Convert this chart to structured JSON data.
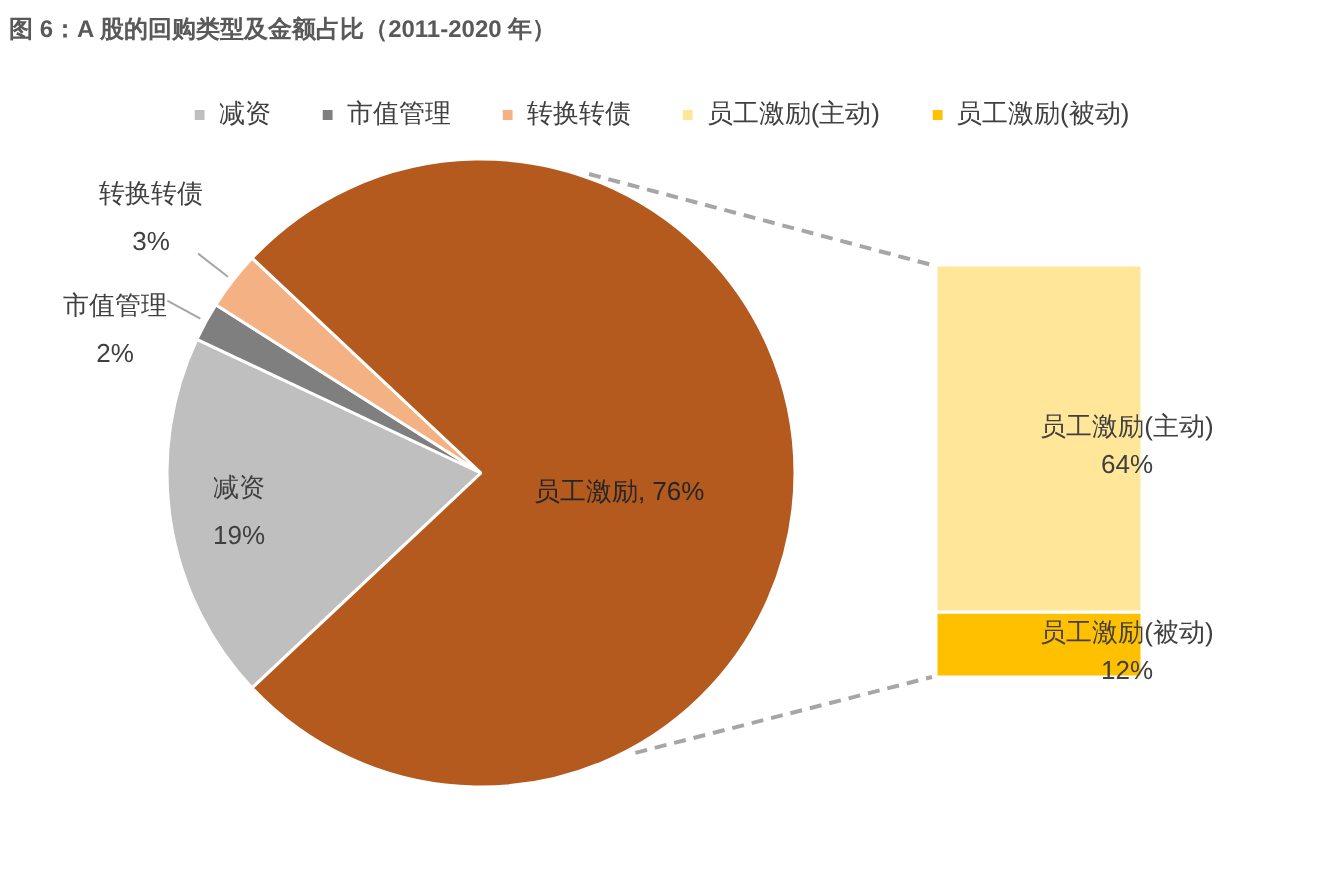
{
  "chart_data": [
    {
      "type": "pie",
      "title": "图 6：A 股的回购类型及金额占比（2011-2020 年）",
      "categories": [
        "减资",
        "市值管理",
        "转换转债",
        "员工激励"
      ],
      "values": [
        19,
        2,
        3,
        76
      ],
      "colors": [
        "#bfbfbf",
        "#7f7f7f",
        "#f4b183",
        "#b45a1e"
      ],
      "value_labels": [
        "19%",
        "2%",
        "3%",
        "76%"
      ],
      "legend": "top"
    },
    {
      "type": "bar",
      "stacked": true,
      "categories": [
        null
      ],
      "series": [
        {
          "name": "员工激励(被动)",
          "color": "#ffc000",
          "values": [
            12
          ],
          "value_labels": [
            "12%"
          ]
        },
        {
          "name": "员工激励(主动)",
          "color": "#ffe699",
          "values": [
            64
          ],
          "value_labels": [
            "64%"
          ]
        }
      ],
      "legend": "top"
    }
  ]
}
